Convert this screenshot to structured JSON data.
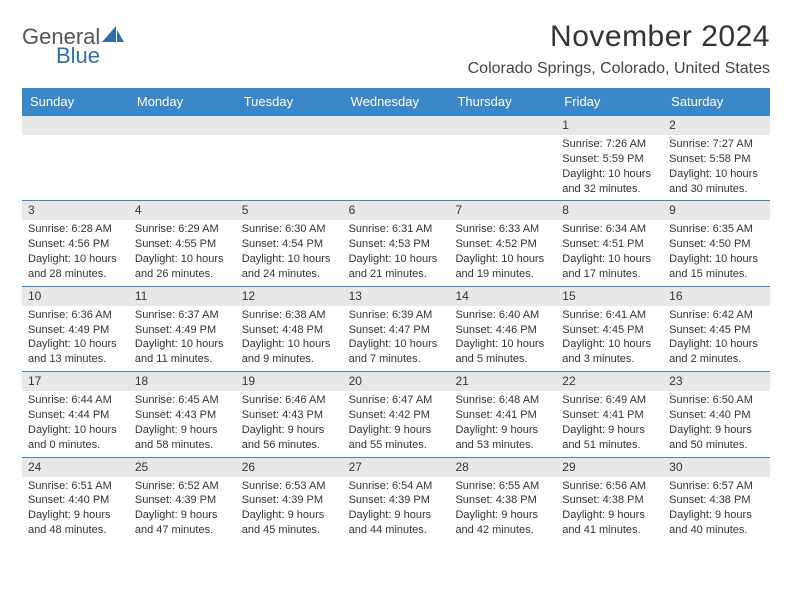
{
  "brand": {
    "text1": "General",
    "text2": "Blue"
  },
  "title": "November 2024",
  "location": "Colorado Springs, Colorado, United States",
  "colors": {
    "header_bg": "#3c87c7",
    "header_text": "#ffffff",
    "daynum_bg": "#e8e8e8",
    "rule": "#3c87c7",
    "text": "#333333",
    "logo_blue": "#2f6fa8"
  },
  "day_headers": [
    "Sunday",
    "Monday",
    "Tuesday",
    "Wednesday",
    "Thursday",
    "Friday",
    "Saturday"
  ],
  "weeks": [
    [
      {
        "blank": true
      },
      {
        "blank": true
      },
      {
        "blank": true
      },
      {
        "blank": true
      },
      {
        "blank": true
      },
      {
        "n": "1",
        "sunrise": "Sunrise: 7:26 AM",
        "sunset": "Sunset: 5:59 PM",
        "day1": "Daylight: 10 hours",
        "day2": "and 32 minutes."
      },
      {
        "n": "2",
        "sunrise": "Sunrise: 7:27 AM",
        "sunset": "Sunset: 5:58 PM",
        "day1": "Daylight: 10 hours",
        "day2": "and 30 minutes."
      }
    ],
    [
      {
        "n": "3",
        "sunrise": "Sunrise: 6:28 AM",
        "sunset": "Sunset: 4:56 PM",
        "day1": "Daylight: 10 hours",
        "day2": "and 28 minutes."
      },
      {
        "n": "4",
        "sunrise": "Sunrise: 6:29 AM",
        "sunset": "Sunset: 4:55 PM",
        "day1": "Daylight: 10 hours",
        "day2": "and 26 minutes."
      },
      {
        "n": "5",
        "sunrise": "Sunrise: 6:30 AM",
        "sunset": "Sunset: 4:54 PM",
        "day1": "Daylight: 10 hours",
        "day2": "and 24 minutes."
      },
      {
        "n": "6",
        "sunrise": "Sunrise: 6:31 AM",
        "sunset": "Sunset: 4:53 PM",
        "day1": "Daylight: 10 hours",
        "day2": "and 21 minutes."
      },
      {
        "n": "7",
        "sunrise": "Sunrise: 6:33 AM",
        "sunset": "Sunset: 4:52 PM",
        "day1": "Daylight: 10 hours",
        "day2": "and 19 minutes."
      },
      {
        "n": "8",
        "sunrise": "Sunrise: 6:34 AM",
        "sunset": "Sunset: 4:51 PM",
        "day1": "Daylight: 10 hours",
        "day2": "and 17 minutes."
      },
      {
        "n": "9",
        "sunrise": "Sunrise: 6:35 AM",
        "sunset": "Sunset: 4:50 PM",
        "day1": "Daylight: 10 hours",
        "day2": "and 15 minutes."
      }
    ],
    [
      {
        "n": "10",
        "sunrise": "Sunrise: 6:36 AM",
        "sunset": "Sunset: 4:49 PM",
        "day1": "Daylight: 10 hours",
        "day2": "and 13 minutes."
      },
      {
        "n": "11",
        "sunrise": "Sunrise: 6:37 AM",
        "sunset": "Sunset: 4:49 PM",
        "day1": "Daylight: 10 hours",
        "day2": "and 11 minutes."
      },
      {
        "n": "12",
        "sunrise": "Sunrise: 6:38 AM",
        "sunset": "Sunset: 4:48 PM",
        "day1": "Daylight: 10 hours",
        "day2": "and 9 minutes."
      },
      {
        "n": "13",
        "sunrise": "Sunrise: 6:39 AM",
        "sunset": "Sunset: 4:47 PM",
        "day1": "Daylight: 10 hours",
        "day2": "and 7 minutes."
      },
      {
        "n": "14",
        "sunrise": "Sunrise: 6:40 AM",
        "sunset": "Sunset: 4:46 PM",
        "day1": "Daylight: 10 hours",
        "day2": "and 5 minutes."
      },
      {
        "n": "15",
        "sunrise": "Sunrise: 6:41 AM",
        "sunset": "Sunset: 4:45 PM",
        "day1": "Daylight: 10 hours",
        "day2": "and 3 minutes."
      },
      {
        "n": "16",
        "sunrise": "Sunrise: 6:42 AM",
        "sunset": "Sunset: 4:45 PM",
        "day1": "Daylight: 10 hours",
        "day2": "and 2 minutes."
      }
    ],
    [
      {
        "n": "17",
        "sunrise": "Sunrise: 6:44 AM",
        "sunset": "Sunset: 4:44 PM",
        "day1": "Daylight: 10 hours",
        "day2": "and 0 minutes."
      },
      {
        "n": "18",
        "sunrise": "Sunrise: 6:45 AM",
        "sunset": "Sunset: 4:43 PM",
        "day1": "Daylight: 9 hours",
        "day2": "and 58 minutes."
      },
      {
        "n": "19",
        "sunrise": "Sunrise: 6:46 AM",
        "sunset": "Sunset: 4:43 PM",
        "day1": "Daylight: 9 hours",
        "day2": "and 56 minutes."
      },
      {
        "n": "20",
        "sunrise": "Sunrise: 6:47 AM",
        "sunset": "Sunset: 4:42 PM",
        "day1": "Daylight: 9 hours",
        "day2": "and 55 minutes."
      },
      {
        "n": "21",
        "sunrise": "Sunrise: 6:48 AM",
        "sunset": "Sunset: 4:41 PM",
        "day1": "Daylight: 9 hours",
        "day2": "and 53 minutes."
      },
      {
        "n": "22",
        "sunrise": "Sunrise: 6:49 AM",
        "sunset": "Sunset: 4:41 PM",
        "day1": "Daylight: 9 hours",
        "day2": "and 51 minutes."
      },
      {
        "n": "23",
        "sunrise": "Sunrise: 6:50 AM",
        "sunset": "Sunset: 4:40 PM",
        "day1": "Daylight: 9 hours",
        "day2": "and 50 minutes."
      }
    ],
    [
      {
        "n": "24",
        "sunrise": "Sunrise: 6:51 AM",
        "sunset": "Sunset: 4:40 PM",
        "day1": "Daylight: 9 hours",
        "day2": "and 48 minutes."
      },
      {
        "n": "25",
        "sunrise": "Sunrise: 6:52 AM",
        "sunset": "Sunset: 4:39 PM",
        "day1": "Daylight: 9 hours",
        "day2": "and 47 minutes."
      },
      {
        "n": "26",
        "sunrise": "Sunrise: 6:53 AM",
        "sunset": "Sunset: 4:39 PM",
        "day1": "Daylight: 9 hours",
        "day2": "and 45 minutes."
      },
      {
        "n": "27",
        "sunrise": "Sunrise: 6:54 AM",
        "sunset": "Sunset: 4:39 PM",
        "day1": "Daylight: 9 hours",
        "day2": "and 44 minutes."
      },
      {
        "n": "28",
        "sunrise": "Sunrise: 6:55 AM",
        "sunset": "Sunset: 4:38 PM",
        "day1": "Daylight: 9 hours",
        "day2": "and 42 minutes."
      },
      {
        "n": "29",
        "sunrise": "Sunrise: 6:56 AM",
        "sunset": "Sunset: 4:38 PM",
        "day1": "Daylight: 9 hours",
        "day2": "and 41 minutes."
      },
      {
        "n": "30",
        "sunrise": "Sunrise: 6:57 AM",
        "sunset": "Sunset: 4:38 PM",
        "day1": "Daylight: 9 hours",
        "day2": "and 40 minutes."
      }
    ]
  ]
}
